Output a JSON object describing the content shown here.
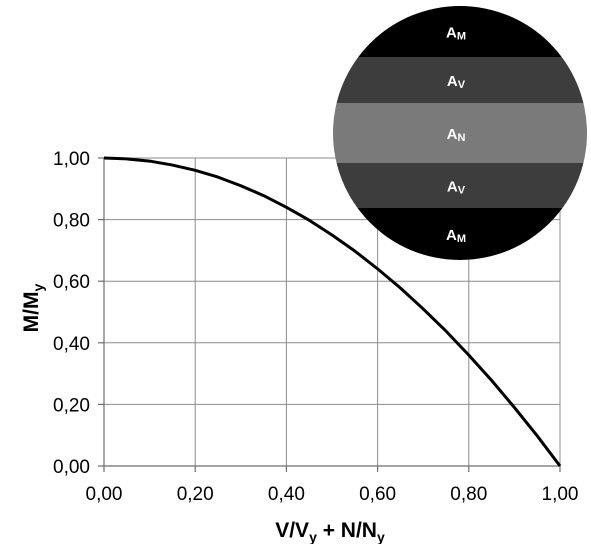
{
  "chart_data": {
    "type": "line",
    "title": "",
    "xlabel": {
      "main": "V/V",
      "sub1": "y",
      "mid": " + N/N",
      "sub2": "y"
    },
    "ylabel": {
      "main": "M/M",
      "sub": "y"
    },
    "xlim": [
      0,
      1
    ],
    "ylim": [
      0,
      1
    ],
    "xticks": [
      0,
      0.2,
      0.4,
      0.6,
      0.8,
      1.0
    ],
    "yticks": [
      0,
      0.2,
      0.4,
      0.6,
      0.8,
      1.0
    ],
    "xtick_labels": [
      "0,00",
      "0,20",
      "0,40",
      "0,60",
      "0,80",
      "1,00"
    ],
    "ytick_labels": [
      "0,00",
      "0,20",
      "0,40",
      "0,60",
      "0,80",
      "1,00"
    ],
    "grid": true,
    "legend": "none",
    "series": [
      {
        "color": "#000000",
        "x": [
          0,
          0.05,
          0.1,
          0.15,
          0.2,
          0.25,
          0.3,
          0.35,
          0.4,
          0.45,
          0.5,
          0.55,
          0.6,
          0.65,
          0.7,
          0.75,
          0.8,
          0.85,
          0.9,
          0.95,
          1.0
        ],
        "y": [
          1.0,
          0.997,
          0.99,
          0.977,
          0.96,
          0.938,
          0.91,
          0.878,
          0.84,
          0.798,
          0.75,
          0.698,
          0.64,
          0.578,
          0.51,
          0.438,
          0.36,
          0.278,
          0.19,
          0.098,
          0.0
        ]
      }
    ]
  },
  "inset": {
    "bands": [
      {
        "label": "A",
        "sub": "M",
        "color": "#000000"
      },
      {
        "label": "A",
        "sub": "V",
        "color": "#3d3d3d"
      },
      {
        "label": "A",
        "sub": "N",
        "color": "#7a7a7a"
      },
      {
        "label": "A",
        "sub": "V",
        "color": "#3d3d3d"
      },
      {
        "label": "A",
        "sub": "M",
        "color": "#000000"
      }
    ]
  }
}
